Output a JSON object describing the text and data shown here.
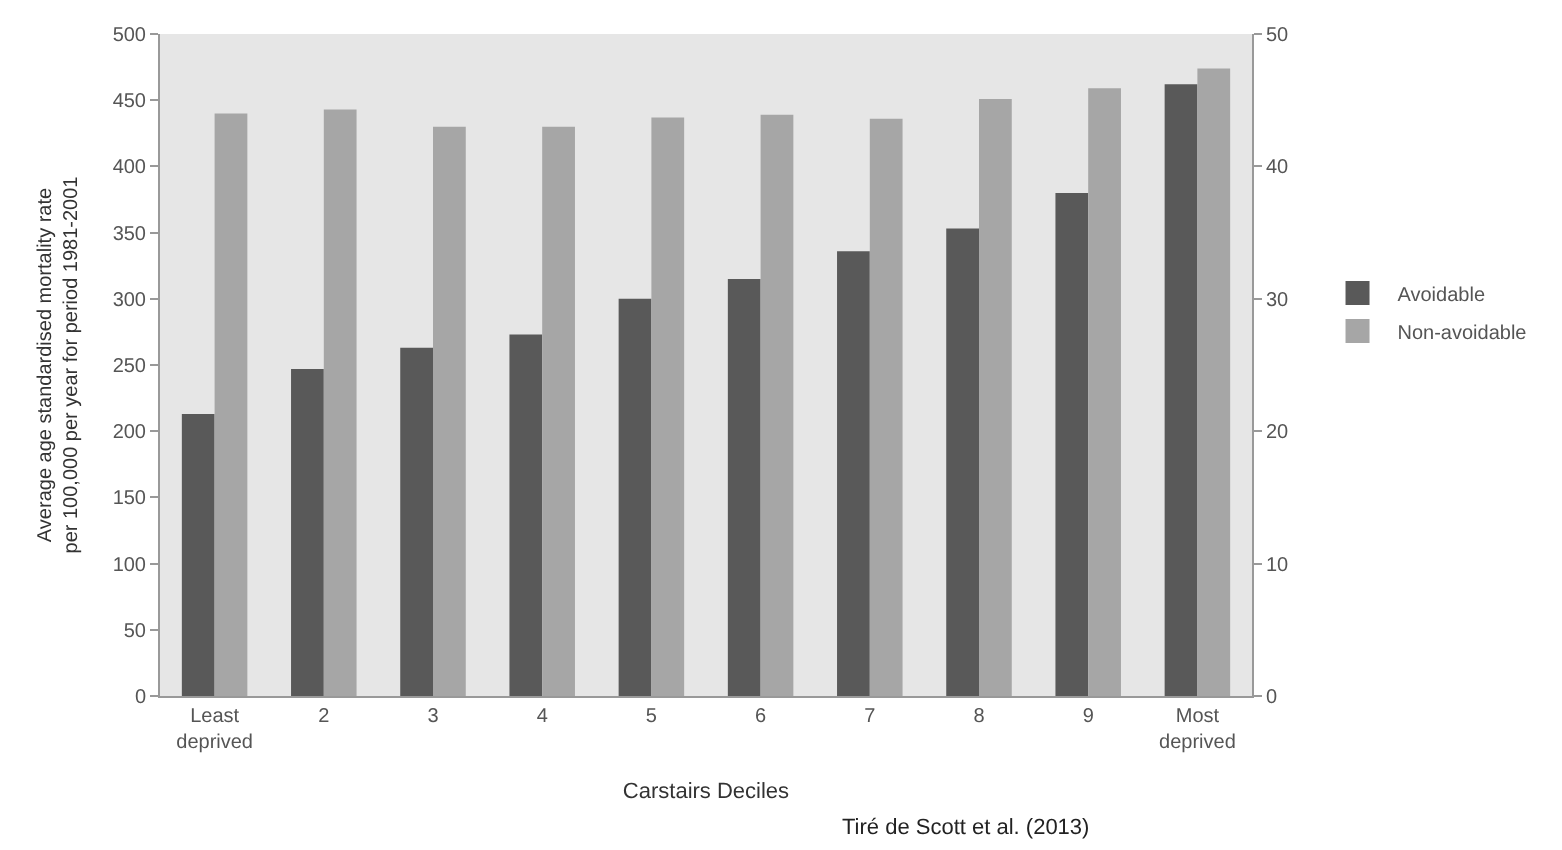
{
  "chart_data": {
    "type": "bar",
    "categories": [
      "Least\ndeprived",
      "2",
      "3",
      "4",
      "5",
      "6",
      "7",
      "8",
      "9",
      "Most\ndeprived"
    ],
    "series": [
      {
        "name": "Avoidable",
        "color": "#595959",
        "values": [
          213,
          247,
          263,
          273,
          300,
          315,
          336,
          353,
          380,
          462
        ]
      },
      {
        "name": "Non-avoidable",
        "color": "#a6a6a6",
        "axis": "y2",
        "values": [
          44.0,
          44.3,
          43.0,
          43.0,
          43.7,
          43.9,
          43.6,
          45.1,
          45.9,
          47.4
        ]
      }
    ],
    "xlabel": "Carstairs Deciles",
    "ylabel": "Average age standardised mortality rate\nper 100,000 per year for period 1981-2001",
    "ylim": [
      0,
      500
    ],
    "yticks": [
      0,
      50,
      100,
      150,
      200,
      250,
      300,
      350,
      400,
      450,
      500
    ],
    "y2lim": [
      0,
      50
    ],
    "y2ticks": [
      0,
      10,
      20,
      30,
      40,
      50
    ],
    "grid": false,
    "legend": "right",
    "annotations": [
      "Tiré de Scott et al. (2013)"
    ]
  }
}
